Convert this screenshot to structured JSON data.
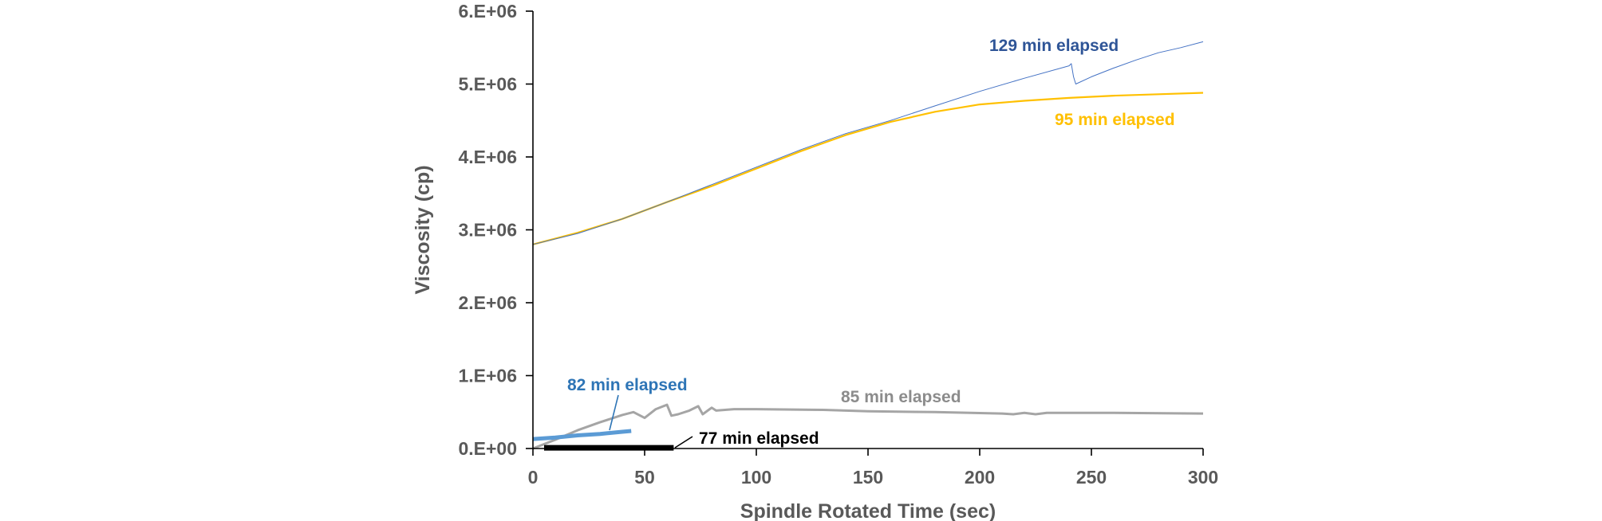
{
  "chart_data": {
    "type": "line",
    "xlabel": "Spindle Rotated Time (sec)",
    "ylabel": "Viscosity (cp)",
    "xlim": [
      0,
      300
    ],
    "ylim": [
      0,
      6000000
    ],
    "x_ticks": [
      "0",
      "50",
      "100",
      "150",
      "200",
      "250",
      "300"
    ],
    "y_ticks": [
      "0.E+00",
      "1.E+06",
      "2.E+06",
      "3.E+06",
      "4.E+06",
      "5.E+06",
      "6.E+06"
    ],
    "grid": false,
    "legend": "none",
    "series": [
      {
        "name": "129 min elapsed",
        "color": "#4472C4",
        "stroke_width": 1,
        "x": [
          0,
          20,
          40,
          60,
          80,
          100,
          120,
          140,
          160,
          180,
          200,
          220,
          240,
          241,
          242,
          243,
          250,
          260,
          270,
          280,
          290,
          300
        ],
        "y": [
          2800000,
          2950000,
          3150000,
          3380000,
          3620000,
          3860000,
          4100000,
          4320000,
          4500000,
          4700000,
          4900000,
          5080000,
          5250000,
          5280000,
          5100000,
          5000000,
          5100000,
          5220000,
          5330000,
          5430000,
          5500000,
          5580000
        ]
      },
      {
        "name": "95 min elapsed",
        "color": "#FFC000",
        "stroke_width": 2.2,
        "x": [
          0,
          20,
          40,
          60,
          80,
          100,
          120,
          140,
          160,
          180,
          200,
          220,
          240,
          260,
          280,
          300
        ],
        "y": [
          2800000,
          2960000,
          3150000,
          3380000,
          3600000,
          3840000,
          4080000,
          4300000,
          4480000,
          4620000,
          4720000,
          4770000,
          4810000,
          4840000,
          4860000,
          4880000
        ]
      },
      {
        "name": "85 min elapsed",
        "color": "#A5A5A5",
        "stroke_width": 3,
        "x": [
          0,
          10,
          20,
          30,
          40,
          45,
          50,
          55,
          60,
          62,
          65,
          70,
          74,
          76,
          80,
          82,
          90,
          100,
          130,
          150,
          180,
          210,
          215,
          220,
          225,
          230,
          260,
          300
        ],
        "y": [
          0,
          120000,
          250000,
          360000,
          460000,
          500000,
          420000,
          540000,
          600000,
          450000,
          470000,
          520000,
          580000,
          470000,
          560000,
          520000,
          540000,
          540000,
          530000,
          510000,
          500000,
          480000,
          470000,
          490000,
          470000,
          490000,
          490000,
          480000
        ]
      },
      {
        "name": "82 min elapsed",
        "color": "#5B9BD5",
        "stroke_width": 5,
        "x": [
          0,
          10,
          20,
          30,
          40,
          44
        ],
        "y": [
          130000,
          150000,
          180000,
          200000,
          230000,
          240000
        ]
      },
      {
        "name": "77 min elapsed",
        "color": "#000000",
        "stroke_width": 7,
        "x": [
          5,
          10,
          20,
          30,
          40,
          50,
          60,
          63
        ],
        "y": [
          10000,
          10000,
          10000,
          10000,
          10000,
          10000,
          10000,
          10000
        ]
      }
    ],
    "annotations": [
      {
        "text": "129 min elapsed",
        "color": "#2F5597"
      },
      {
        "text": "95 min elapsed",
        "color": "#FFC000"
      },
      {
        "text": "85 min elapsed",
        "color": "#8C8C8C"
      },
      {
        "text": "82 min elapsed",
        "color": "#2E75B6"
      },
      {
        "text": "77 min elapsed",
        "color": "#000000"
      }
    ]
  }
}
